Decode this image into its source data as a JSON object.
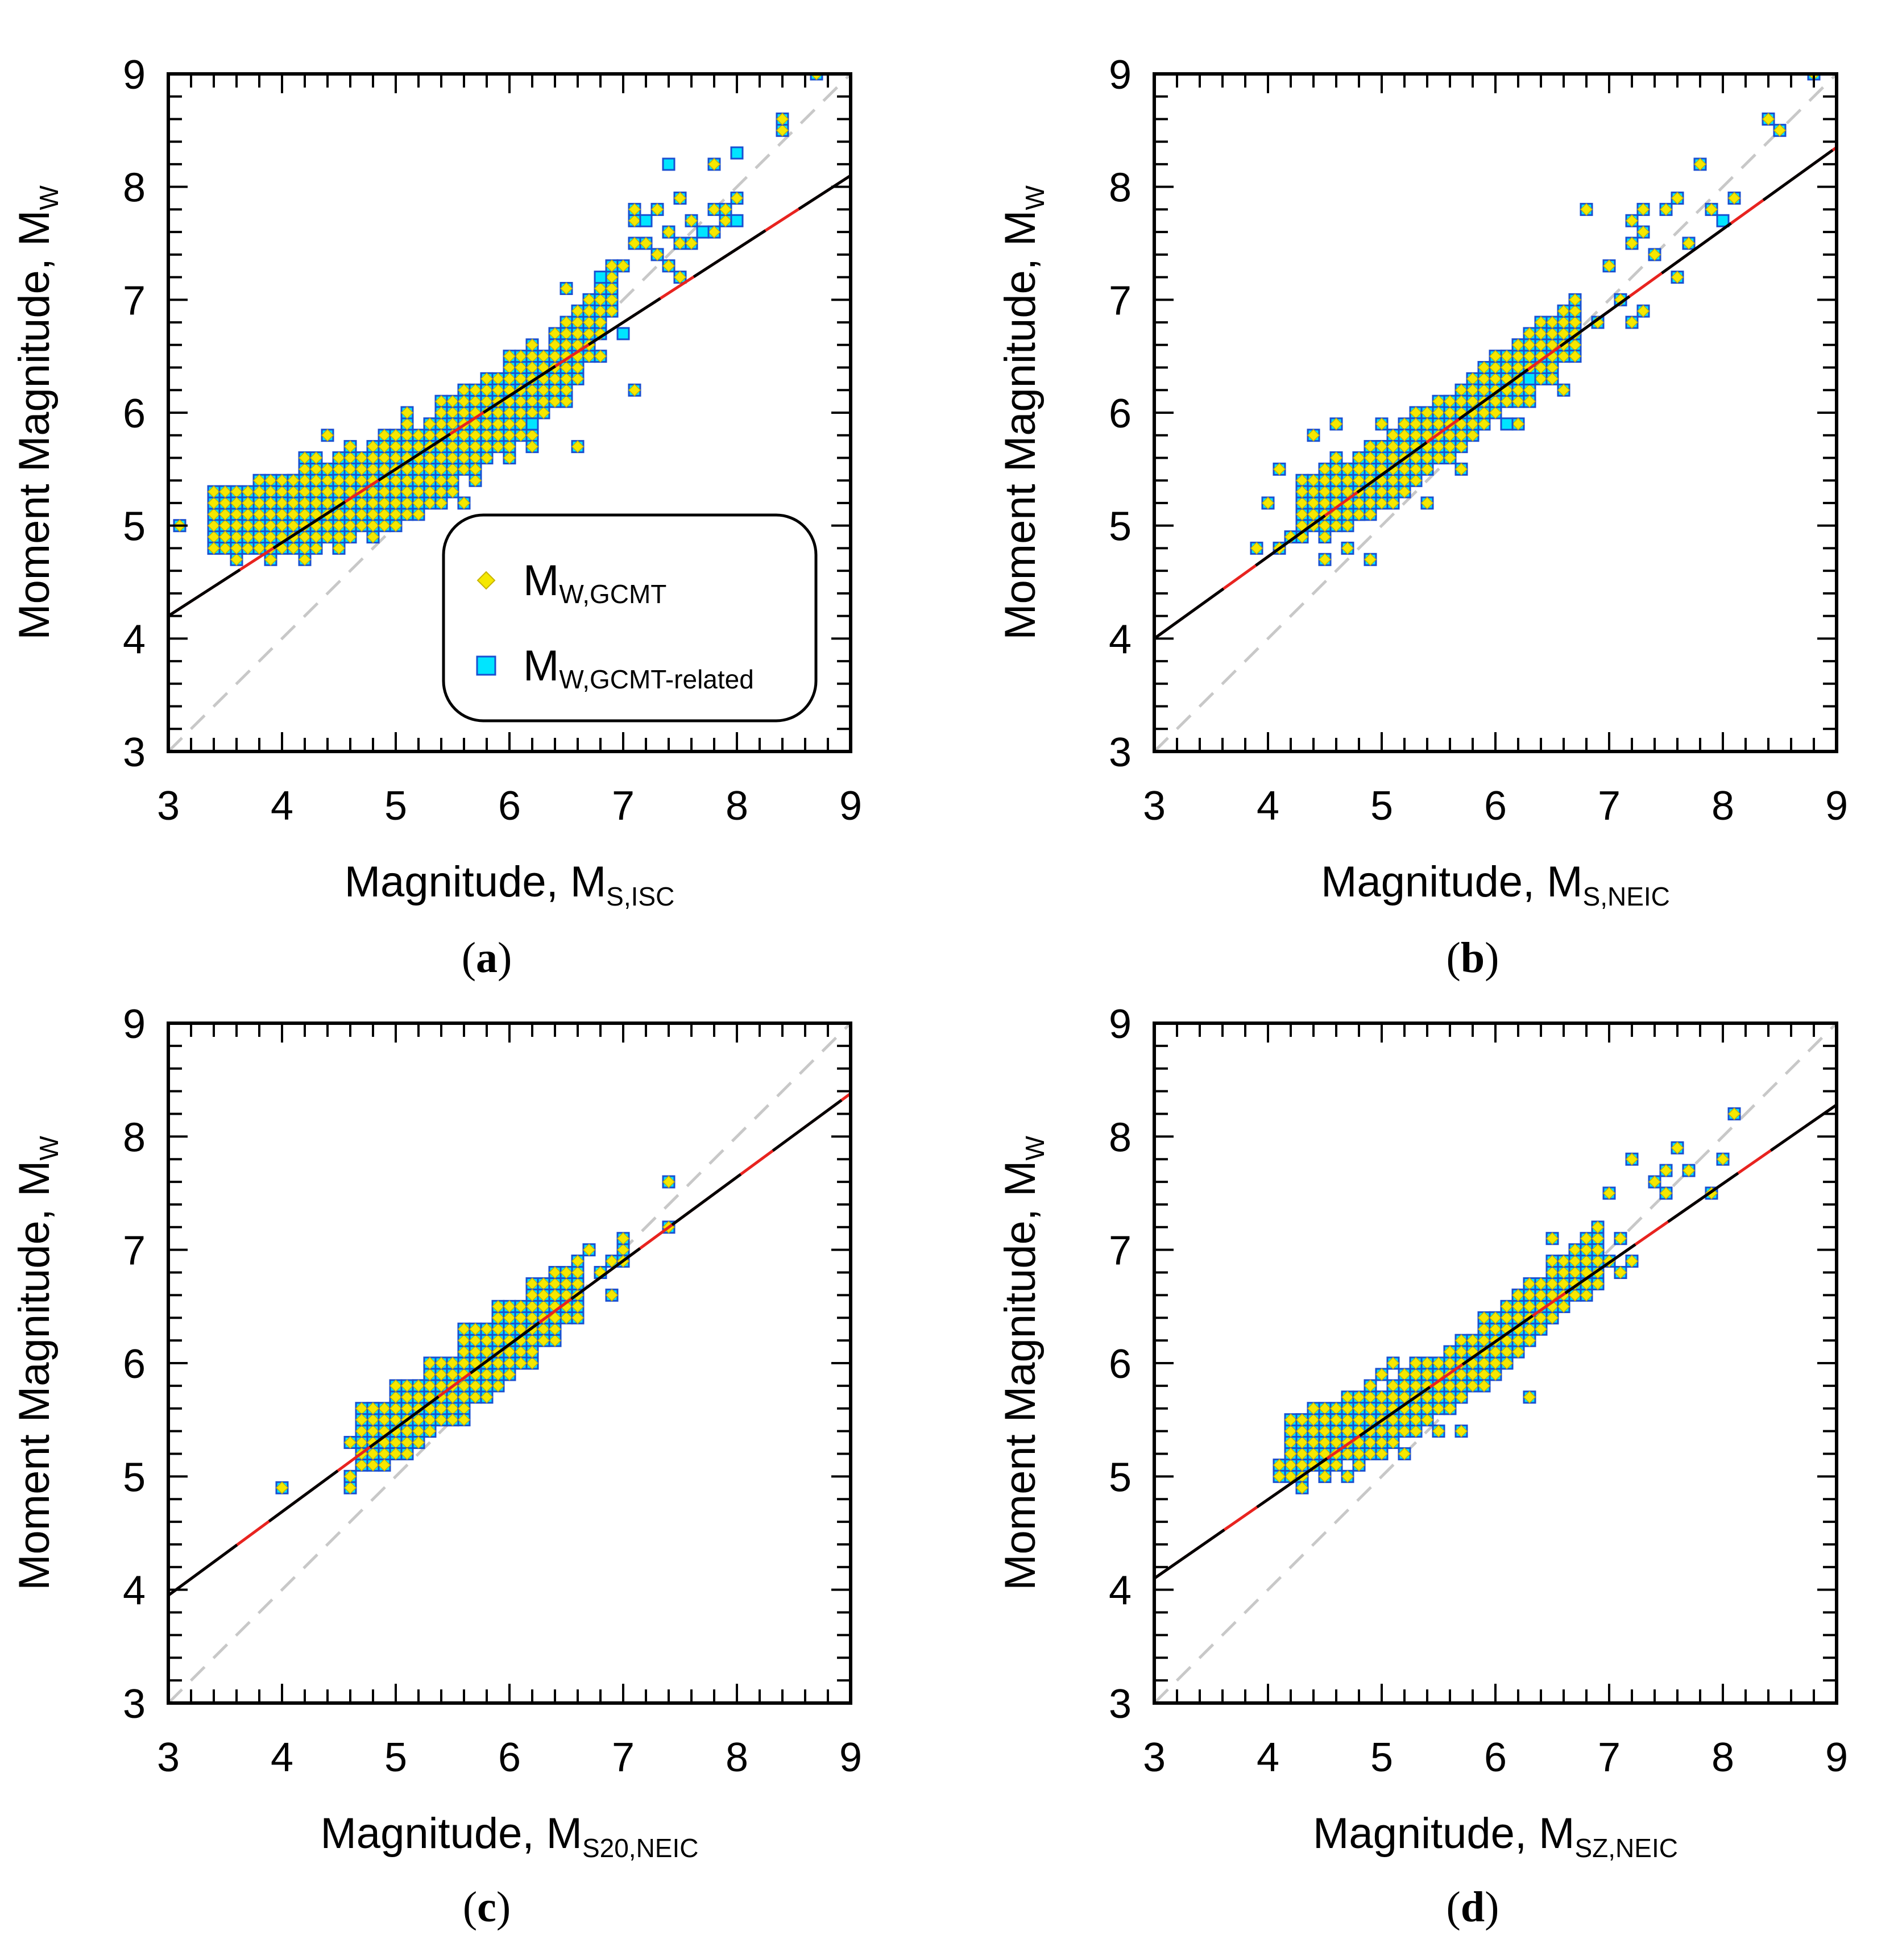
{
  "figure": {
    "colors": {
      "gcmt_fill": "#f5e800",
      "gcmt_square": "#00e5ff",
      "square_stroke": "#1a4fd1",
      "regression_black": "#000000",
      "regression_red": "#e8231f",
      "one_to_one": "#c8c8c8"
    }
  },
  "chart_data": [
    {
      "type": "scatter",
      "panel_label": "a",
      "xlabel": "Magnitude, M",
      "xlabel_sub": "S,ISC",
      "ylabel": "Moment Magnitude, M",
      "ylabel_sub": "W",
      "xlim": [
        3,
        9
      ],
      "ylim": [
        3,
        9
      ],
      "xticks": [
        "3",
        "4",
        "5",
        "6",
        "7",
        "8",
        "9"
      ],
      "yticks": [
        "3",
        "4",
        "5",
        "6",
        "7",
        "8",
        "9"
      ],
      "legend": {
        "position": "lower-right",
        "items": [
          {
            "label": "M",
            "sub": "W,GCMT",
            "marker": "diamond"
          },
          {
            "label": "M",
            "sub": "W,GCMT-related",
            "marker": "square"
          }
        ]
      },
      "one_to_one": [
        [
          3,
          3
        ],
        [
          9,
          9
        ]
      ],
      "regression": [
        [
          3,
          4.2
        ],
        [
          9,
          8.1
        ]
      ],
      "cloud": [
        [
          3.4,
          4.8,
          3.9,
          5.1
        ],
        [
          3.6,
          4.7,
          4.3,
          5.4
        ],
        [
          3.9,
          4.7,
          4.6,
          5.6
        ],
        [
          4.2,
          4.7,
          4.9,
          5.8
        ],
        [
          4.5,
          4.8,
          5.1,
          6.0
        ],
        [
          4.8,
          4.9,
          5.4,
          6.2
        ],
        [
          5.0,
          5.0,
          5.6,
          6.4
        ],
        [
          5.2,
          5.1,
          5.8,
          6.5
        ],
        [
          5.4,
          5.2,
          6.0,
          6.6
        ],
        [
          5.7,
          5.4,
          6.2,
          6.8
        ],
        [
          6.0,
          5.6,
          6.5,
          7.0
        ],
        [
          6.2,
          5.8,
          6.7,
          7.2
        ],
        [
          6.5,
          6.1,
          6.9,
          7.5
        ]
      ],
      "scatter": [
        [
          3.1,
          5.0
        ],
        [
          3.4,
          4.8
        ],
        [
          3.5,
          4.9
        ],
        [
          3.6,
          5.0
        ],
        [
          3.7,
          5.2
        ],
        [
          3.8,
          5.3
        ],
        [
          3.9,
          5.2
        ],
        [
          4.1,
          5.4
        ],
        [
          4.2,
          5.6
        ],
        [
          4.4,
          5.8
        ],
        [
          4.3,
          5.6
        ],
        [
          4.6,
          5.7
        ],
        [
          5.1,
          6.0
        ],
        [
          5.3,
          5.9
        ],
        [
          5.7,
          5.5
        ],
        [
          5.6,
          5.2
        ],
        [
          5.8,
          6.3
        ],
        [
          6.0,
          6.5
        ],
        [
          6.2,
          6.0
        ],
        [
          6.2,
          5.7
        ],
        [
          6.6,
          5.7
        ],
        [
          6.5,
          7.1
        ],
        [
          6.8,
          6.5
        ],
        [
          7.1,
          6.2
        ],
        [
          7.0,
          7.3
        ],
        [
          7.1,
          7.5
        ],
        [
          7.1,
          7.7
        ],
        [
          7.1,
          7.8
        ],
        [
          7.2,
          7.5
        ],
        [
          7.3,
          7.4
        ],
        [
          7.3,
          7.8
        ],
        [
          7.4,
          7.6
        ],
        [
          7.4,
          7.3
        ],
        [
          7.5,
          7.9
        ],
        [
          7.5,
          7.5
        ],
        [
          7.5,
          7.2
        ],
        [
          7.6,
          7.5
        ],
        [
          7.6,
          7.7
        ],
        [
          7.8,
          7.6
        ],
        [
          7.8,
          7.8
        ],
        [
          7.8,
          8.2
        ],
        [
          7.9,
          7.7
        ],
        [
          7.9,
          7.8
        ],
        [
          8.0,
          7.9
        ],
        [
          8.4,
          8.5
        ],
        [
          8.4,
          8.6
        ],
        [
          8.7,
          9.0
        ]
      ],
      "related": [
        [
          6.8,
          7.2
        ],
        [
          7.0,
          6.7
        ],
        [
          7.2,
          7.7
        ],
        [
          7.4,
          8.2
        ],
        [
          7.7,
          7.6
        ],
        [
          8.0,
          8.3
        ],
        [
          8.0,
          7.7
        ],
        [
          6.2,
          5.9
        ]
      ]
    },
    {
      "type": "scatter",
      "panel_label": "b",
      "xlabel": "Magnitude, M",
      "xlabel_sub": "S,NEIC",
      "ylabel": "Moment Magnitude, M",
      "ylabel_sub": "W",
      "xlim": [
        3,
        9
      ],
      "ylim": [
        3,
        9
      ],
      "xticks": [
        "3",
        "4",
        "5",
        "6",
        "7",
        "8",
        "9"
      ],
      "yticks": [
        "3",
        "4",
        "5",
        "6",
        "7",
        "8",
        "9"
      ],
      "one_to_one": [
        [
          3,
          3
        ],
        [
          9,
          9
        ]
      ],
      "regression": [
        [
          3,
          4.0
        ],
        [
          9,
          8.35
        ]
      ],
      "cloud": [
        [
          4.3,
          4.9,
          4.6,
          5.3
        ],
        [
          4.5,
          4.9,
          4.9,
          5.5
        ],
        [
          4.7,
          5.0,
          5.1,
          5.7
        ],
        [
          4.9,
          5.1,
          5.3,
          5.9
        ],
        [
          5.1,
          5.2,
          5.5,
          6.1
        ],
        [
          5.3,
          5.4,
          5.8,
          6.3
        ],
        [
          5.6,
          5.6,
          6.1,
          6.5
        ],
        [
          5.9,
          5.9,
          6.4,
          6.8
        ],
        [
          6.2,
          6.1,
          6.7,
          7.0
        ]
      ],
      "scatter": [
        [
          3.9,
          4.8
        ],
        [
          4.0,
          5.2
        ],
        [
          4.1,
          5.5
        ],
        [
          4.1,
          4.8
        ],
        [
          4.2,
          4.9
        ],
        [
          4.3,
          5.3
        ],
        [
          4.4,
          5.8
        ],
        [
          4.5,
          4.7
        ],
        [
          4.6,
          5.9
        ],
        [
          4.7,
          4.8
        ],
        [
          4.9,
          4.7
        ],
        [
          5.0,
          5.9
        ],
        [
          5.4,
          5.2
        ],
        [
          5.7,
          5.5
        ],
        [
          6.0,
          6.5
        ],
        [
          6.2,
          5.9
        ],
        [
          6.3,
          6.1
        ],
        [
          6.5,
          6.3
        ],
        [
          6.6,
          6.2
        ],
        [
          6.7,
          6.5
        ],
        [
          6.8,
          7.8
        ],
        [
          6.9,
          6.8
        ],
        [
          7.0,
          7.3
        ],
        [
          7.1,
          7.0
        ],
        [
          7.2,
          6.8
        ],
        [
          7.2,
          7.5
        ],
        [
          7.2,
          7.7
        ],
        [
          7.3,
          7.8
        ],
        [
          7.3,
          7.6
        ],
        [
          7.3,
          6.9
        ],
        [
          7.4,
          7.4
        ],
        [
          7.5,
          7.8
        ],
        [
          7.6,
          7.9
        ],
        [
          7.6,
          7.2
        ],
        [
          7.7,
          7.5
        ],
        [
          7.8,
          8.2
        ],
        [
          7.9,
          7.8
        ],
        [
          8.1,
          7.9
        ],
        [
          8.4,
          8.6
        ],
        [
          8.5,
          8.5
        ],
        [
          8.8,
          9.0
        ]
      ],
      "related": [
        [
          8.0,
          7.7
        ],
        [
          6.3,
          6.3
        ],
        [
          6.1,
          5.9
        ]
      ]
    },
    {
      "type": "scatter",
      "panel_label": "c",
      "xlabel": "Magnitude, M",
      "xlabel_sub": "S20,NEIC",
      "ylabel": "Moment Magnitude, M",
      "ylabel_sub": "W",
      "xlim": [
        3,
        9
      ],
      "ylim": [
        3,
        9
      ],
      "xticks": [
        "3",
        "4",
        "5",
        "6",
        "7",
        "8",
        "9"
      ],
      "yticks": [
        "3",
        "4",
        "5",
        "6",
        "7",
        "8",
        "9"
      ],
      "one_to_one": [
        [
          3,
          3
        ],
        [
          9,
          9
        ]
      ],
      "regression": [
        [
          3,
          3.95
        ],
        [
          9,
          8.38
        ]
      ],
      "cloud": [
        [
          4.7,
          5.1,
          5.3,
          5.6
        ],
        [
          5.0,
          5.3,
          5.6,
          5.8
        ],
        [
          5.3,
          5.5,
          5.9,
          6.0
        ],
        [
          5.6,
          5.8,
          6.2,
          6.2
        ],
        [
          5.9,
          6.0,
          6.4,
          6.4
        ],
        [
          6.2,
          6.2,
          6.6,
          6.6
        ]
      ],
      "scatter": [
        [
          4.0,
          4.9
        ],
        [
          4.6,
          4.9
        ],
        [
          4.6,
          5.0
        ],
        [
          4.6,
          5.3
        ],
        [
          4.7,
          5.5
        ],
        [
          4.7,
          5.2
        ],
        [
          4.8,
          5.6
        ],
        [
          4.9,
          5.1
        ],
        [
          5.0,
          5.2
        ],
        [
          5.1,
          5.2
        ],
        [
          5.2,
          5.3
        ],
        [
          5.3,
          5.4
        ],
        [
          5.5,
          5.5
        ],
        [
          5.6,
          5.5
        ],
        [
          5.8,
          5.8
        ],
        [
          6.0,
          5.9
        ],
        [
          6.1,
          6.0
        ],
        [
          6.2,
          6.1
        ],
        [
          6.2,
          6.6
        ],
        [
          6.3,
          6.6
        ],
        [
          6.3,
          6.2
        ],
        [
          6.4,
          6.4
        ],
        [
          6.4,
          6.6
        ],
        [
          6.5,
          6.5
        ],
        [
          6.6,
          6.5
        ],
        [
          6.6,
          6.8
        ],
        [
          6.6,
          6.9
        ],
        [
          6.7,
          7.0
        ],
        [
          6.8,
          6.8
        ],
        [
          6.9,
          6.6
        ],
        [
          6.9,
          6.9
        ],
        [
          7.0,
          7.0
        ],
        [
          7.0,
          7.1
        ],
        [
          7.0,
          6.9
        ],
        [
          7.4,
          7.6
        ],
        [
          7.4,
          7.2
        ]
      ],
      "related": []
    },
    {
      "type": "scatter",
      "panel_label": "d",
      "xlabel": "Magnitude, M",
      "xlabel_sub": "SZ,NEIC",
      "ylabel": "Moment Magnitude, M",
      "ylabel_sub": "W",
      "xlim": [
        3,
        9
      ],
      "ylim": [
        3,
        9
      ],
      "xticks": [
        "3",
        "4",
        "5",
        "6",
        "7",
        "8",
        "9"
      ],
      "yticks": [
        "3",
        "4",
        "5",
        "6",
        "7",
        "8",
        "9"
      ],
      "one_to_one": [
        [
          3,
          3
        ],
        [
          9,
          9
        ]
      ],
      "regression": [
        [
          3,
          4.1
        ],
        [
          9,
          8.28
        ]
      ],
      "cloud": [
        [
          4.2,
          5.0,
          4.7,
          5.4
        ],
        [
          4.5,
          5.0,
          4.9,
          5.6
        ],
        [
          4.8,
          5.1,
          5.2,
          5.7
        ],
        [
          5.0,
          5.2,
          5.5,
          5.9
        ],
        [
          5.3,
          5.4,
          5.8,
          6.1
        ],
        [
          5.6,
          5.6,
          6.1,
          6.3
        ],
        [
          5.9,
          5.9,
          6.3,
          6.5
        ],
        [
          6.2,
          6.1,
          6.6,
          6.8
        ],
        [
          6.5,
          6.4,
          6.9,
          7.0
        ]
      ],
      "scatter": [
        [
          4.1,
          5.1
        ],
        [
          4.1,
          5.0
        ],
        [
          4.2,
          5.2
        ],
        [
          4.3,
          4.9
        ],
        [
          4.3,
          5.5
        ],
        [
          4.4,
          5.6
        ],
        [
          4.5,
          5.0
        ],
        [
          4.6,
          5.5
        ],
        [
          4.7,
          5.0
        ],
        [
          4.8,
          5.6
        ],
        [
          5.0,
          5.9
        ],
        [
          5.1,
          6.0
        ],
        [
          5.2,
          5.2
        ],
        [
          5.3,
          6.0
        ],
        [
          5.5,
          5.4
        ],
        [
          5.7,
          5.4
        ],
        [
          5.9,
          5.8
        ],
        [
          6.1,
          6.0
        ],
        [
          6.3,
          5.7
        ],
        [
          6.3,
          6.5
        ],
        [
          6.5,
          7.1
        ],
        [
          6.6,
          6.5
        ],
        [
          6.7,
          6.7
        ],
        [
          6.8,
          6.8
        ],
        [
          6.9,
          7.0
        ],
        [
          7.0,
          7.5
        ],
        [
          7.0,
          6.9
        ],
        [
          7.1,
          7.1
        ],
        [
          7.1,
          6.8
        ],
        [
          7.2,
          6.9
        ],
        [
          7.2,
          7.8
        ],
        [
          7.4,
          7.6
        ],
        [
          7.5,
          7.5
        ],
        [
          7.5,
          7.7
        ],
        [
          7.6,
          7.9
        ],
        [
          7.7,
          7.7
        ],
        [
          7.9,
          7.5
        ],
        [
          8.0,
          7.8
        ],
        [
          8.1,
          8.2
        ]
      ],
      "related": []
    }
  ]
}
